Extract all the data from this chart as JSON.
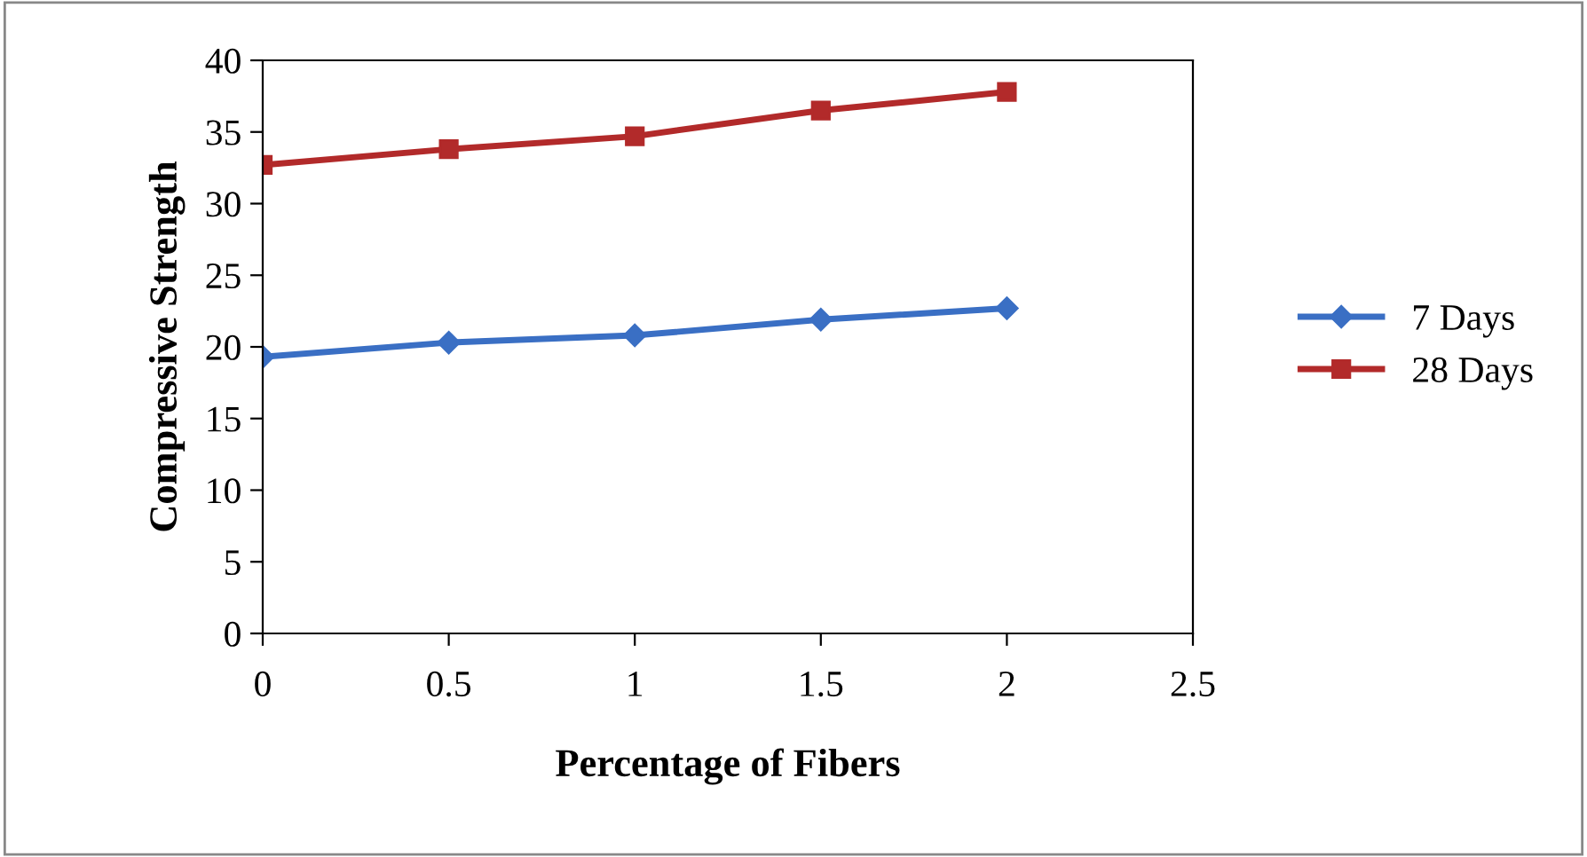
{
  "chart_data": {
    "type": "line",
    "xlabel": "Percentage of Fibers",
    "ylabel": "Compressive Strength",
    "x": [
      0,
      0.5,
      1,
      1.5,
      2
    ],
    "series": [
      {
        "name": "7 Days",
        "color": "#3a6fc4",
        "marker": "diamond",
        "values": [
          19.3,
          20.3,
          20.8,
          21.9,
          22.7
        ]
      },
      {
        "name": "28 Days",
        "color": "#b22a2a",
        "marker": "square",
        "values": [
          32.7,
          33.8,
          34.7,
          36.5,
          37.8
        ]
      }
    ],
    "xlim": [
      0,
      2.5
    ],
    "xticks": [
      0,
      0.5,
      1,
      1.5,
      2,
      2.5
    ],
    "ylim": [
      0,
      40
    ],
    "yticks": [
      0,
      5,
      10,
      15,
      20,
      25,
      30,
      35,
      40
    ],
    "grid": false,
    "legend": "right",
    "line_style": "solid"
  }
}
